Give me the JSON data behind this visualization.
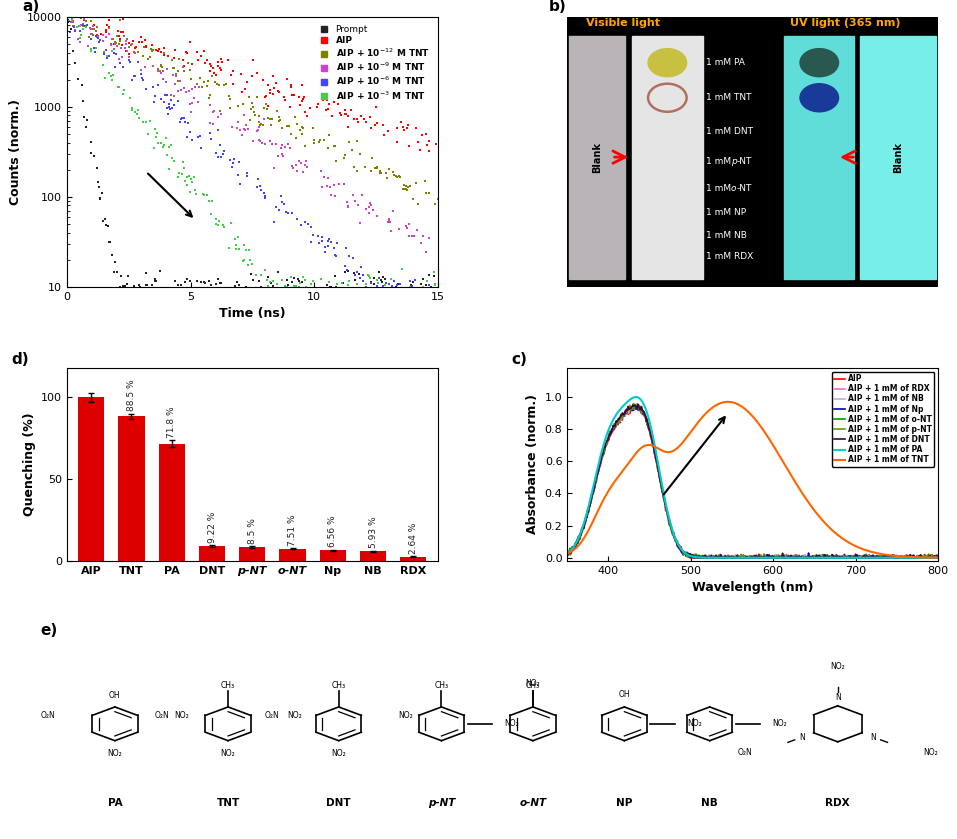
{
  "panel_a": {
    "ylabel": "Counts (norm.)",
    "xlabel": "Time (ns)",
    "xlim": [
      0,
      15
    ],
    "colors": [
      "#222222",
      "#ff0000",
      "#808000",
      "#cc44cc",
      "#4444ff",
      "#44cc44"
    ],
    "taus": [
      0.3,
      4.5,
      3.2,
      2.5,
      1.8,
      1.2
    ],
    "legend_labels": [
      "Prompt",
      "AIP",
      "AIP + 10$^{-12}$ M TNT",
      "AIP + 10$^{-9}$ M TNT",
      "AIP + 10$^{-6}$ M TNT",
      "AIP + 10$^{-3}$ M TNT"
    ]
  },
  "panel_b": {
    "visible_label": "Visible light",
    "uv_label": "UV light (365 nm)",
    "compounds": [
      "1 mM PA",
      "1 mM TNT",
      "1 mM DNT",
      "1 mM p-NT",
      "1 mM o-NT",
      "1 mM NP",
      "1 mM NB",
      "1 mM RDX"
    ],
    "blank_label": "Blank"
  },
  "panel_c": {
    "ylabel": "Absorbance (norm.)",
    "xlabel": "Wavelength (nm)",
    "xlim": [
      350,
      800
    ],
    "series_labels": [
      "AIP",
      "AIP + 1 mM of RDX",
      "AIP + 1 mM of NB",
      "AIP + 1 mM of Np",
      "AIP + 1 mM of o-NT",
      "AIP + 1 mM of p-NT",
      "AIP + 1 mM of DNT",
      "AIP + 1 mM of PA",
      "AIP + 1 mM of TNT"
    ],
    "series_colors": [
      "#ff0000",
      "#ff66cc",
      "#ccaacc",
      "#0000cc",
      "#009900",
      "#669900",
      "#440044",
      "#00cccc",
      "#ff6600"
    ]
  },
  "panel_d": {
    "ylabel": "Quenching (%)",
    "categories": [
      "AIP",
      "TNT",
      "PA",
      "DNT",
      "p-NT",
      "o-NT",
      "Np",
      "NB",
      "RDX"
    ],
    "values": [
      100,
      88.5,
      71.8,
      9.22,
      8.5,
      7.51,
      6.56,
      5.93,
      2.64
    ],
    "bar_color": "#dd0000",
    "error_bars": [
      2.5,
      1.5,
      2.0,
      0.5,
      0.5,
      0.4,
      0.3,
      0.3,
      0.2
    ],
    "annotations": [
      "",
      "88.5 %",
      "71.8 %",
      "9.22 %",
      "8.5 %",
      "7.51 %",
      "6.56 %",
      "5.93 %",
      "2.64 %"
    ]
  }
}
